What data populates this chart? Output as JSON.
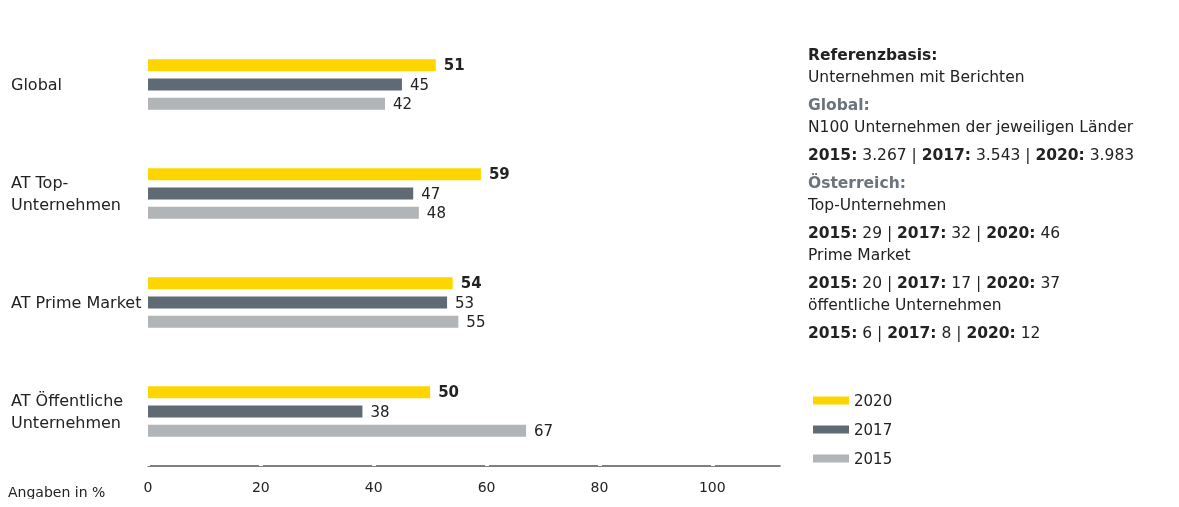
{
  "chart_data": {
    "type": "bar",
    "orientation": "horizontal",
    "xlabel": "Angaben in %",
    "categories": [
      "Global",
      "AT Top-Unternehmen",
      "AT Prime Market",
      "AT Öffentliche Unternehmen"
    ],
    "series": [
      {
        "name": "2020",
        "color": "#ffd500",
        "values": [
          51,
          59,
          54,
          50
        ]
      },
      {
        "name": "2017",
        "color": "#5f6a74",
        "values": [
          45,
          47,
          53,
          38
        ]
      },
      {
        "name": "2015",
        "color": "#b1b5b8",
        "values": [
          42,
          48,
          55,
          67
        ]
      }
    ],
    "xlim": [
      0,
      112
    ],
    "xticks": [
      0,
      20,
      40,
      60,
      80,
      100
    ],
    "grid": false,
    "data_labels": true,
    "legend": "right",
    "annotations": [
      "Referenzbasis:",
      "Unternehmen mit Berichten",
      "Global:",
      "N100 Unternehmen der jeweiligen Länder",
      "2015: 3.267 | 2017: 3.543 | 2020: 3.983",
      "Österreich:",
      "Top-Unternehmen",
      "2015: 29 | 2017: 32 | 2020: 46",
      "Prime Market",
      "2015: 20 | 2017: 17 | 2020: 37",
      "öffentliche Unternehmen",
      "2015: 6 | 2017: 8 | 2020: 12"
    ]
  }
}
